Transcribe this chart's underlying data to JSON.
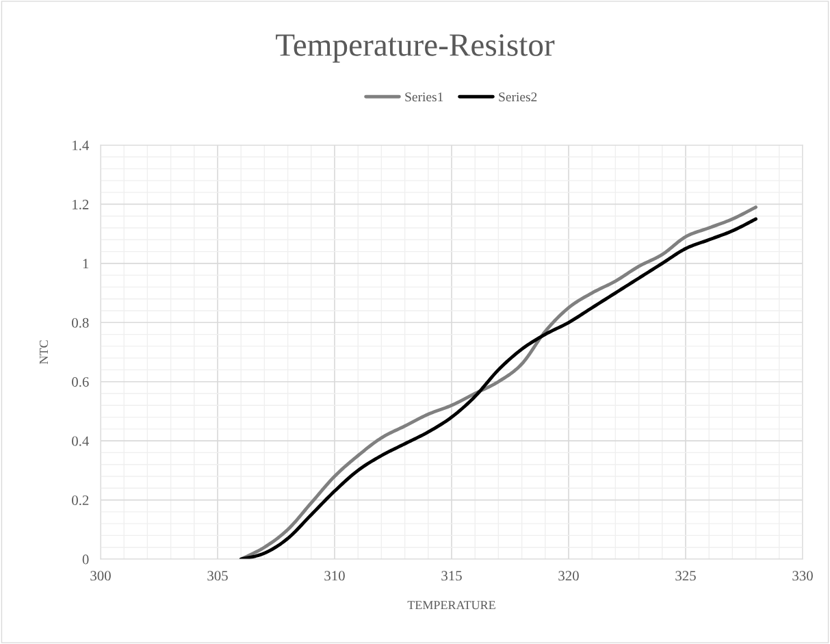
{
  "chart_data": {
    "type": "line",
    "title": "Temperature-Resistor",
    "xlabel": "TEMPERATURE",
    "ylabel": "NTC",
    "x": [
      306,
      307,
      308,
      309,
      310,
      311,
      312,
      313,
      314,
      315,
      316,
      317,
      318,
      319,
      320,
      321,
      322,
      323,
      324,
      325,
      326,
      327,
      328
    ],
    "series": [
      {
        "name": "Series1",
        "color": "#808080",
        "values": [
          0,
          0.04,
          0.1,
          0.19,
          0.28,
          0.35,
          0.41,
          0.45,
          0.49,
          0.52,
          0.56,
          0.6,
          0.66,
          0.77,
          0.85,
          0.9,
          0.94,
          0.99,
          1.03,
          1.09,
          1.12,
          1.15,
          1.19
        ]
      },
      {
        "name": "Series2",
        "color": "#000000",
        "values": [
          0,
          0.02,
          0.07,
          0.15,
          0.23,
          0.3,
          0.35,
          0.39,
          0.43,
          0.48,
          0.55,
          0.64,
          0.71,
          0.76,
          0.8,
          0.85,
          0.9,
          0.95,
          1.0,
          1.05,
          1.08,
          1.11,
          1.15
        ]
      }
    ],
    "xlim": [
      300,
      330
    ],
    "xticks": [
      300,
      305,
      310,
      315,
      320,
      325,
      330
    ],
    "ylim": [
      0,
      1.4
    ],
    "yticks": [
      0,
      0.2,
      0.4,
      0.6,
      0.8,
      1,
      1.2,
      1.4
    ],
    "grid": true,
    "legend": "top",
    "marker": "none",
    "line_style": "solid"
  }
}
